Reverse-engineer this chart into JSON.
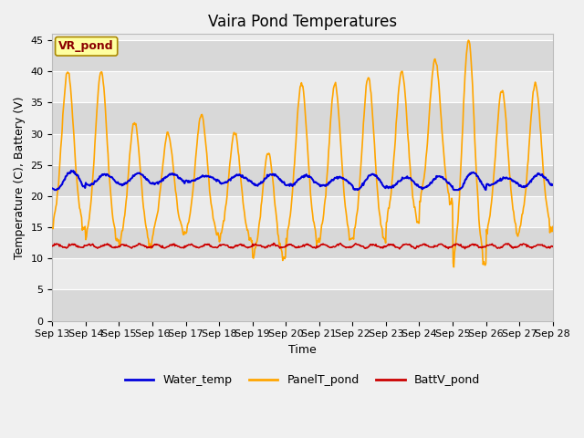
{
  "title": "Vaira Pond Temperatures",
  "xlabel": "Time",
  "ylabel": "Temperature (C), Battery (V)",
  "ylim": [
    0,
    46
  ],
  "yticks": [
    0,
    5,
    10,
    15,
    20,
    25,
    30,
    35,
    40,
    45
  ],
  "date_labels": [
    "Sep 13",
    "Sep 14",
    "Sep 15",
    "Sep 16",
    "Sep 17",
    "Sep 18",
    "Sep 19",
    "Sep 20",
    "Sep 21",
    "Sep 22",
    "Sep 23",
    "Sep 24",
    "Sep 25",
    "Sep 26",
    "Sep 27",
    "Sep 28"
  ],
  "annotation_text": "VR_pond",
  "annotation_color": "#8B0000",
  "annotation_bg": "#FFFFA0",
  "water_color": "#0000DD",
  "panel_color": "#FFA500",
  "batt_color": "#CC0000",
  "background_light": "#EBEBEB",
  "background_dark": "#D8D8D8",
  "background_outer": "#F0F0F0",
  "legend_labels": [
    "Water_temp",
    "PanelT_pond",
    "BattV_pond"
  ],
  "title_fontsize": 12,
  "axis_fontsize": 9,
  "tick_fontsize": 8,
  "legend_fontsize": 9,
  "peak_targets": [
    40,
    40,
    32,
    30,
    33,
    30,
    27,
    38,
    38,
    39,
    40,
    42,
    45,
    37,
    38
  ],
  "trough_targets": [
    15,
    13,
    12,
    14,
    14,
    13,
    10,
    13,
    13,
    13,
    16,
    19,
    9,
    14,
    15
  ]
}
